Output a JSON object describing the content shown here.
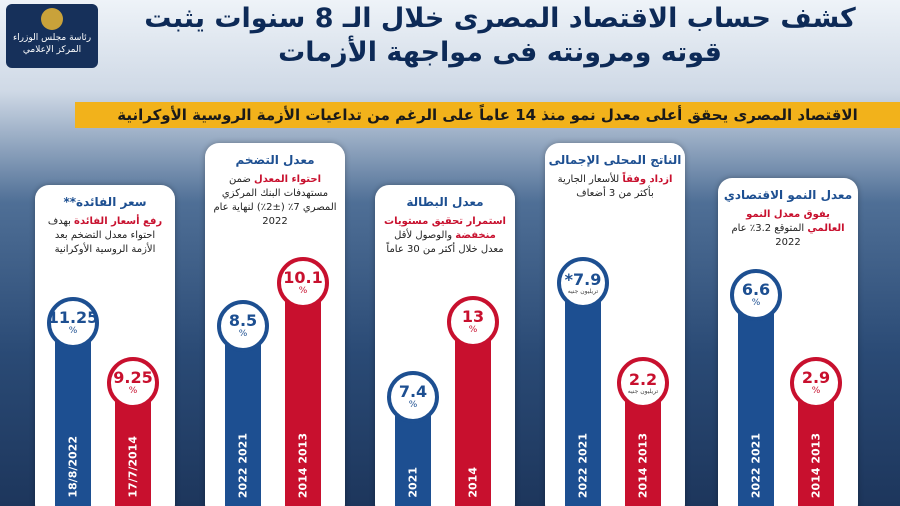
{
  "header": {
    "title": "كشف حساب الاقتصاد المصرى خلال الـ 8 سنوات يثبت قوته ومرونته فى مواجهة الأزمات",
    "logo": [
      "رئاسة مجلس الوزراء",
      "المركز الإعلامي"
    ],
    "subtitle": "الاقتصاد المصرى يحقق أعلى معدل نمو منذ 14 عاماً على الرغم من تداعيات الأزمة الروسية الأوكرانية"
  },
  "cards": [
    {
      "title": "معدل النمو الاقتصادي",
      "highlight": "يفوق معدل النمو العالمي",
      "description": "المتوقع 3.2٪ عام 2022",
      "bars": [
        {
          "value": "6.6",
          "unit": "%",
          "period": "2021 2022"
        },
        {
          "value": "2.9",
          "unit": "%",
          "period": "2013 2014"
        }
      ]
    },
    {
      "title": "الناتج المحلى الإجمالى",
      "highlight": "ازداد وفقاً",
      "description": "للأسعار الجارية بأكثر من 3 أضعاف",
      "bars": [
        {
          "value": "*7.9",
          "note": "تريليون جنيه",
          "period": "2021 2022"
        },
        {
          "value": "2.2",
          "note": "تريليون جنيه",
          "period": "2013 2014"
        }
      ]
    },
    {
      "title": "معدل البطالة",
      "highlight": "استمرار تحقيق مستويات منخفضة",
      "description": "والوصول لأقل معدل خلال أكثر من 30 عاماً",
      "bars": [
        {
          "value": "7.4",
          "unit": "%",
          "period": "2021"
        },
        {
          "value": "13",
          "unit": "%",
          "period": "2014"
        }
      ]
    },
    {
      "title": "معدل التضخم",
      "highlight": "احتواء المعدل",
      "description": "ضمن مستهدفات البنك المركزي المصري 7٪ (±2٪) لنهاية عام 2022",
      "bars": [
        {
          "value": "8.5",
          "unit": "%",
          "period": "2021 2022"
        },
        {
          "value": "10.1",
          "unit": "%",
          "period": "2013 2014"
        }
      ]
    },
    {
      "title": "سعر الفائدة**",
      "highlight": "رفع أسعار الفائدة",
      "description": "بهدف احتواء معدل التضخم بعد الأزمة الروسية الأوكرانية",
      "bars": [
        {
          "value": "11.25",
          "unit": "%",
          "period": "18/8/2022"
        },
        {
          "value": "9.25",
          "unit": "%",
          "period": "17/7/2014"
        }
      ]
    }
  ]
}
